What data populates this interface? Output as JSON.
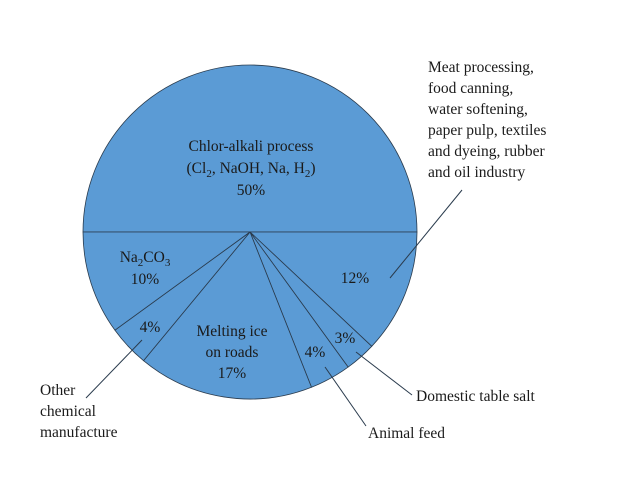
{
  "chart_data": {
    "type": "pie",
    "slices": [
      {
        "name": "Chlor-alkali process",
        "value": 50,
        "label_lines": [
          "Chlor-alkali process",
          "(Cl2, NaOH, Na, H2)",
          "50%"
        ]
      },
      {
        "name": "Meat processing, food canning, water softening, paper pulp, textiles and dyeing, rubber and oil industry",
        "value": 12,
        "label_lines": [
          "12%"
        ],
        "callout_lines": [
          "Meat processing,",
          "food canning,",
          "water softening,",
          "paper pulp, textiles",
          "and dyeing, rubber",
          "and oil industry"
        ]
      },
      {
        "name": "Domestic table salt",
        "value": 3,
        "label_lines": [
          "3%"
        ],
        "callout_lines": [
          "Domestic table salt"
        ]
      },
      {
        "name": "Animal feed",
        "value": 4,
        "label_lines": [
          "4%"
        ],
        "callout_lines": [
          "Animal feed"
        ]
      },
      {
        "name": "Melting ice on roads",
        "value": 17,
        "label_lines": [
          "Melting ice",
          "on roads",
          "17%"
        ]
      },
      {
        "name": "Other chemical manufacture",
        "value": 4,
        "label_lines": [
          "4%"
        ],
        "callout_lines": [
          "Other",
          "chemical",
          "manufacture"
        ]
      },
      {
        "name": "Na2CO3",
        "value": 10,
        "label_lines": [
          "Na2CO3",
          "10%"
        ]
      }
    ],
    "colors": {
      "fill": "#5b9bd5",
      "stroke": "#2a3b4d",
      "text": "#1a1a1a"
    }
  }
}
